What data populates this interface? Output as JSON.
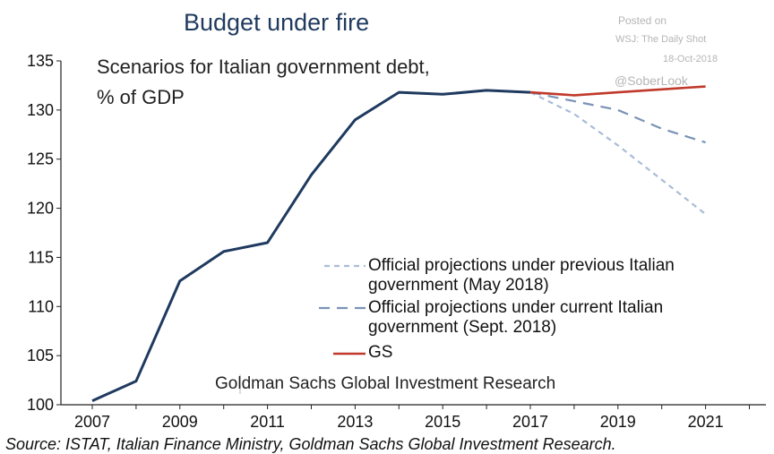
{
  "title": "Budget under fire",
  "subtitle_line1": "Scenarios for Italian government debt,",
  "subtitle_line2": "% of GDP",
  "watermark": {
    "posted": "Posted on",
    "wsj": "WSJ: The Daily Shot",
    "date": "18-Oct-2018",
    "handle": "@SoberLook"
  },
  "footer": "Goldman Sachs Global Investment Research",
  "source": "Source: ISTAT, Italian Finance Ministry, Goldman Sachs Global Investment Research.",
  "colors": {
    "actual": "#1f3a5f",
    "prev": "#a9bcd6",
    "curr": "#7b93b6",
    "gs": "#c0392b"
  },
  "chart_data": {
    "type": "line",
    "title": "Budget under fire",
    "subtitle": "Scenarios for Italian government debt, % of GDP",
    "xlim": [
      2007,
      2022
    ],
    "ylim": [
      100,
      135
    ],
    "x_ticks": [
      "2007",
      "2009",
      "2011",
      "2013",
      "2015",
      "2017",
      "2019",
      "2021"
    ],
    "y_ticks": [
      "100",
      "105",
      "110",
      "115",
      "120",
      "125",
      "130",
      "135"
    ],
    "legend": {
      "prev_line1": "Official projections under previous Italian",
      "prev_line2": "government (May 2018)",
      "curr_line1": "Official projections under current Italian",
      "curr_line2": "government (Sept. 2018)",
      "gs": "GS"
    },
    "series": [
      {
        "key": "actual",
        "x": [
          2007,
          2008,
          2009,
          2010,
          2011,
          2012,
          2013,
          2014,
          2015,
          2016,
          2017
        ],
        "values": [
          100.4,
          102.4,
          112.6,
          115.6,
          116.5,
          123.4,
          129.0,
          131.8,
          131.6,
          132.0,
          131.8
        ]
      },
      {
        "key": "prev",
        "name": "Official projections under previous Italian government (May 2018)",
        "x": [
          2017,
          2018,
          2019,
          2020,
          2021
        ],
        "values": [
          131.8,
          129.6,
          126.4,
          122.9,
          119.4
        ]
      },
      {
        "key": "curr",
        "name": "Official projections under current Italian government (Sept. 2018)",
        "x": [
          2017,
          2018,
          2019,
          2020,
          2021
        ],
        "values": [
          131.8,
          130.9,
          130.0,
          128.1,
          126.7
        ]
      },
      {
        "key": "gs",
        "name": "GS",
        "x": [
          2017,
          2018,
          2019,
          2020,
          2021
        ],
        "values": [
          131.8,
          131.5,
          131.8,
          132.1,
          132.4
        ]
      }
    ]
  }
}
